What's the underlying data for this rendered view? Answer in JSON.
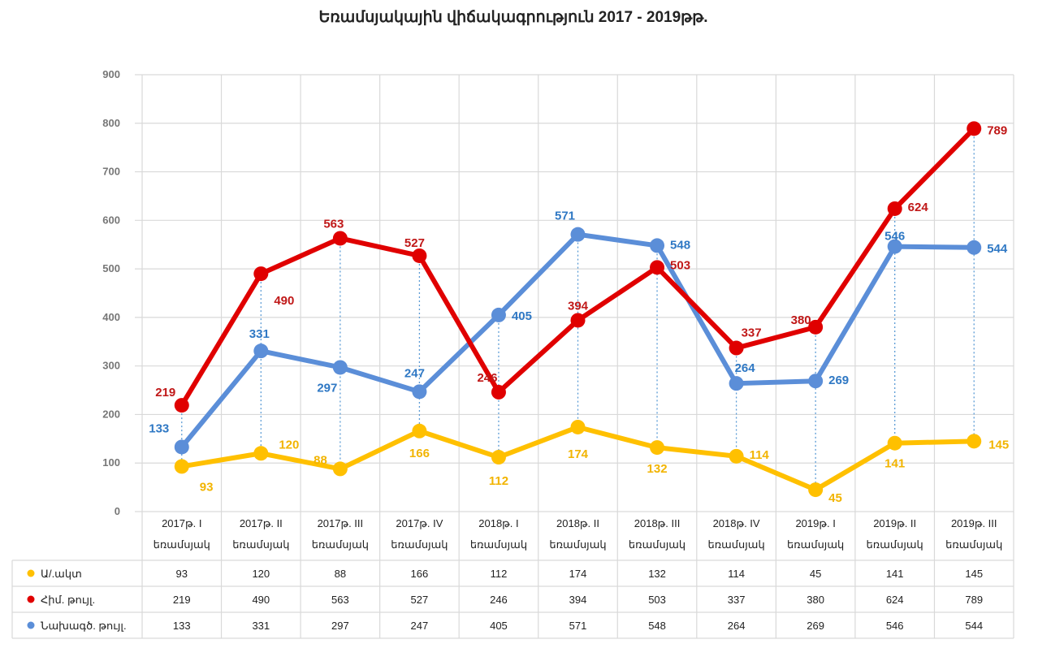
{
  "chart_data": {
    "type": "line",
    "title": "Եռամսյակային վիճակագրություն 2017 - 2019թթ.",
    "categories": [
      {
        "line1": "2017թ. I",
        "line2": "եռամսյակ"
      },
      {
        "line1": "2017թ. II",
        "line2": "եռամսյակ"
      },
      {
        "line1": "2017թ. III",
        "line2": "եռամսյակ"
      },
      {
        "line1": "2017թ. IV",
        "line2": "եռամսյակ"
      },
      {
        "line1": "2018թ. I",
        "line2": "եռամսյակ"
      },
      {
        "line1": "2018թ. II",
        "line2": "եռամսյակ"
      },
      {
        "line1": "2018թ. III",
        "line2": "եռամսյակ"
      },
      {
        "line1": "2018թ. IV",
        "line2": "եռամսյակ"
      },
      {
        "line1": "2019թ. I",
        "line2": "եռամսյակ"
      },
      {
        "line1": "2019թ. II",
        "line2": "եռամսյակ"
      },
      {
        "line1": "2019թ. III",
        "line2": "եռամսյակ"
      }
    ],
    "ylim": [
      0,
      900
    ],
    "yticks": [
      "0",
      "100",
      "200",
      "300",
      "400",
      "500",
      "600",
      "700",
      "800",
      "900"
    ],
    "grid": true,
    "legend": "data-table-left",
    "series": [
      {
        "name": "Ա/.ակտ",
        "color": "#ffc000",
        "values": [
          93,
          120,
          88,
          166,
          112,
          174,
          132,
          114,
          45,
          141,
          145
        ]
      },
      {
        "name": "Հիմ. թույլ.",
        "color": "#e00000",
        "values": [
          219,
          490,
          563,
          527,
          246,
          394,
          503,
          337,
          380,
          624,
          789
        ]
      },
      {
        "name": "Նախագծ. թույլ.",
        "color": "#5b8ed8",
        "values": [
          133,
          331,
          297,
          247,
          405,
          571,
          548,
          264,
          269,
          546,
          544
        ]
      }
    ]
  }
}
